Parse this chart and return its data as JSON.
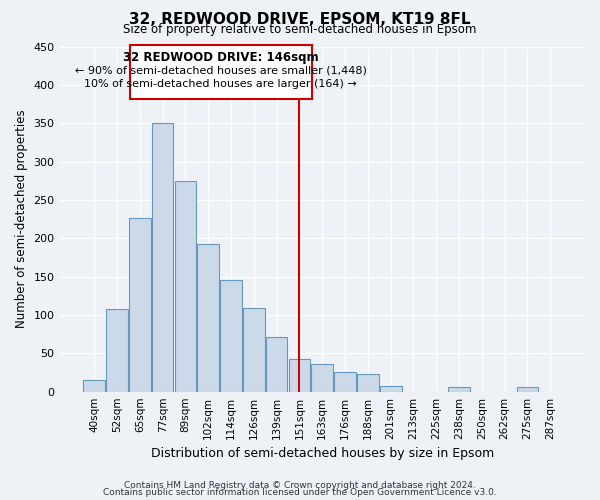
{
  "title": "32, REDWOOD DRIVE, EPSOM, KT19 8FL",
  "subtitle": "Size of property relative to semi-detached houses in Epsom",
  "xlabel": "Distribution of semi-detached houses by size in Epsom",
  "ylabel": "Number of semi-detached properties",
  "bar_labels": [
    "40sqm",
    "52sqm",
    "65sqm",
    "77sqm",
    "89sqm",
    "102sqm",
    "114sqm",
    "126sqm",
    "139sqm",
    "151sqm",
    "163sqm",
    "176sqm",
    "188sqm",
    "201sqm",
    "213sqm",
    "225sqm",
    "238sqm",
    "250sqm",
    "262sqm",
    "275sqm",
    "287sqm"
  ],
  "bar_values": [
    15,
    108,
    226,
    350,
    275,
    192,
    145,
    109,
    71,
    42,
    36,
    26,
    23,
    8,
    0,
    0,
    6,
    0,
    0,
    6,
    0
  ],
  "bar_color": "#ccd9e8",
  "bar_edge_color": "#6699bb",
  "vline_idx": 9.0,
  "vline_color": "#cc0000",
  "annotation_title": "32 REDWOOD DRIVE: 146sqm",
  "annotation_line1": "← 90% of semi-detached houses are smaller (1,448)",
  "annotation_line2": "10% of semi-detached houses are larger (164) →",
  "annotation_box_edge": "#cc0000",
  "ylim": [
    0,
    450
  ],
  "yticks": [
    0,
    50,
    100,
    150,
    200,
    250,
    300,
    350,
    400,
    450
  ],
  "footer1": "Contains HM Land Registry data © Crown copyright and database right 2024.",
  "footer2": "Contains public sector information licensed under the Open Government Licence v3.0.",
  "bg_color": "#eef2f7",
  "plot_bg_color": "#eef2f7",
  "grid_color": "#ffffff"
}
